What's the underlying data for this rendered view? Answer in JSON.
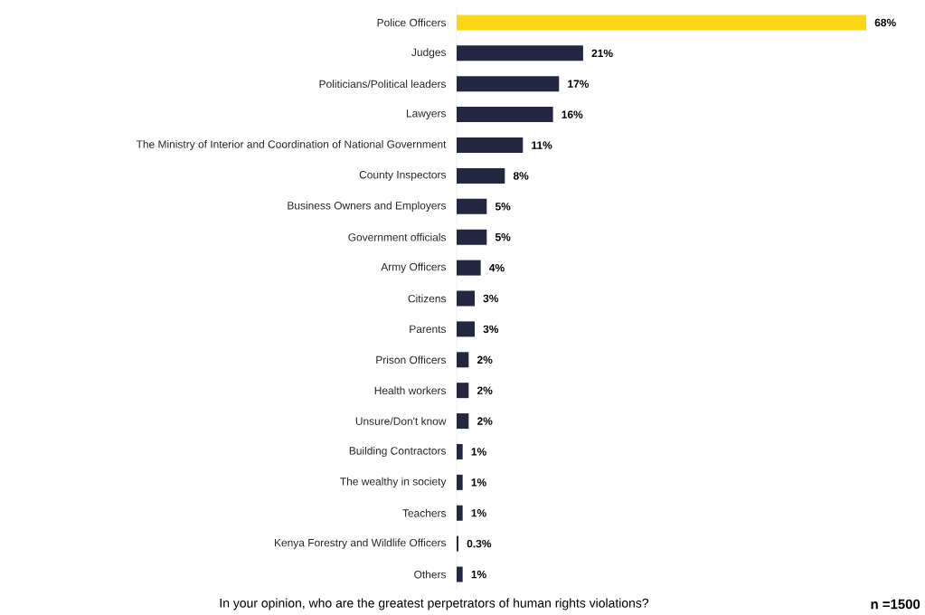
{
  "chart_data": {
    "type": "bar",
    "orientation": "horizontal",
    "categories": [
      "Police Officers",
      "Judges",
      "Politicians/Political leaders",
      "Lawyers",
      "The Ministry of Interior and Coordination of National Government",
      "County Inspectors",
      "Business Owners and Employers",
      "Government officials",
      "Army Officers",
      "Citizens",
      "Parents",
      "Prison Officers",
      "Health workers",
      "Unsure/Don't know",
      "Building Contractors",
      "The wealthy in society",
      "Teachers",
      "Kenya Forestry and Wildlife Officers",
      "Others"
    ],
    "values": [
      68,
      21,
      17,
      16,
      11,
      8,
      5,
      5,
      4,
      3,
      3,
      2,
      2,
      2,
      1,
      1,
      1,
      0.3,
      1
    ],
    "value_labels": [
      "68%",
      "21%",
      "17%",
      "16%",
      "11%",
      "8%",
      "5%",
      "5%",
      "4%",
      "3%",
      "3%",
      "2%",
      "2%",
      "2%",
      "1%",
      "1%",
      "1%",
      "0.3%",
      "1%"
    ],
    "colors": [
      "#ffd615",
      "#232741",
      "#232741",
      "#232741",
      "#232741",
      "#232741",
      "#232741",
      "#232741",
      "#232741",
      "#232741",
      "#232741",
      "#232741",
      "#232741",
      "#232741",
      "#232741",
      "#232741",
      "#232741",
      "#232741",
      "#232741"
    ],
    "annotations": [
      "In your opinion, who are the greatest perpetrators of human rights violations?",
      "n =1500"
    ]
  }
}
